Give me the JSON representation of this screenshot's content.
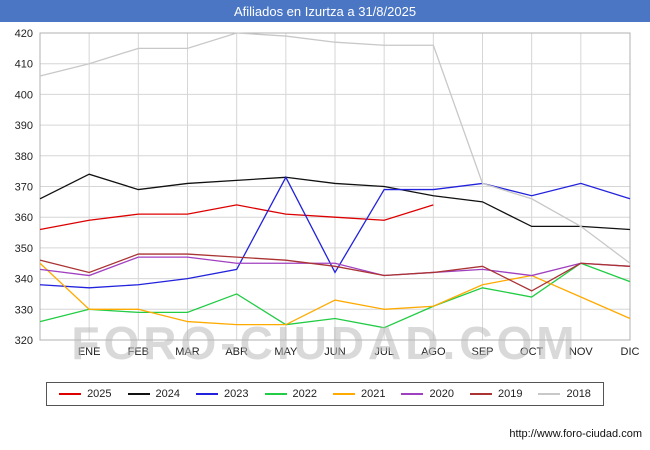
{
  "title_bar_color": "#4a76c4",
  "watermark": "FORO-CIUDAD.COM",
  "footer_url": "http://www.foro-ciudad.com",
  "chart_data": {
    "type": "line",
    "title": "Afiliados en Izurtza a 31/8/2025",
    "xlabel": "",
    "ylabel": "",
    "x_categories": [
      "ENE",
      "FEB",
      "MAR",
      "ABR",
      "MAY",
      "JUN",
      "JUL",
      "AGO",
      "SEP",
      "OCT",
      "NOV",
      "DIC"
    ],
    "ylim": [
      320,
      420
    ],
    "ytick_step": 10,
    "grid": true,
    "legend_position": "bottom",
    "note_points_start_at_left_axis": true,
    "series": [
      {
        "name": "2025",
        "color": "#dd0000",
        "values": [
          356,
          359,
          361,
          361,
          364,
          361,
          360,
          359,
          364
        ]
      },
      {
        "name": "2024",
        "color": "#111111",
        "values": [
          366,
          374,
          369,
          371,
          372,
          373,
          371,
          370,
          367,
          365,
          357,
          357,
          356
        ]
      },
      {
        "name": "2023",
        "color": "#2222dd",
        "values": [
          338,
          337,
          338,
          340,
          343,
          373,
          342,
          369,
          369,
          371,
          367,
          371,
          366
        ]
      },
      {
        "name": "2022",
        "color": "#22cc44",
        "values": [
          326,
          330,
          329,
          329,
          335,
          325,
          327,
          324,
          331,
          337,
          334,
          345,
          339
        ]
      },
      {
        "name": "2021",
        "color": "#ffaa00",
        "values": [
          345,
          330,
          330,
          326,
          325,
          325,
          333,
          330,
          331,
          338,
          341,
          334,
          327
        ]
      },
      {
        "name": "2020",
        "color": "#a040c0",
        "values": [
          343,
          341,
          347,
          347,
          345,
          345,
          345,
          341,
          342,
          343,
          341,
          345,
          344
        ]
      },
      {
        "name": "2019",
        "color": "#aa3333",
        "values": [
          346,
          342,
          348,
          348,
          347,
          346,
          344,
          341,
          342,
          344,
          336,
          345,
          344
        ]
      },
      {
        "name": "2018",
        "color": "#c8c8c8",
        "values": [
          406,
          410,
          415,
          415,
          420,
          419,
          417,
          416,
          416,
          371,
          366,
          357,
          345
        ]
      }
    ]
  }
}
